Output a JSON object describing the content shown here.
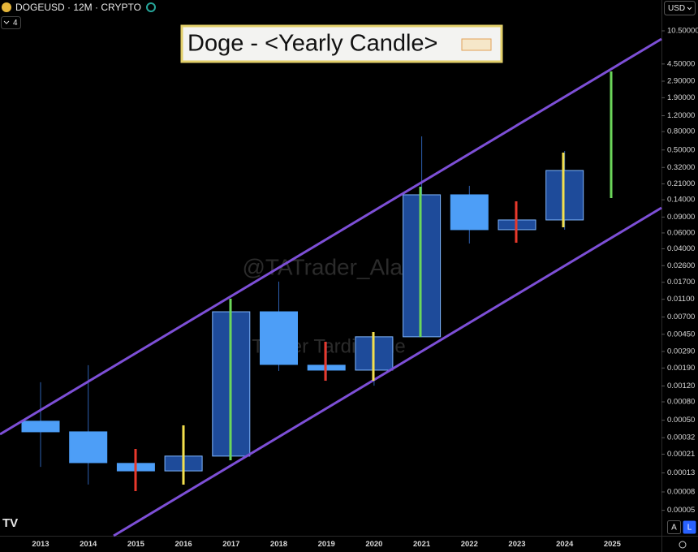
{
  "chart_data": {
    "type": "candlestick",
    "symbol": "DOGEUSD · 12M · CRYPTO",
    "indicator_count": "4",
    "title": "Doge - <Yearly Candle>",
    "watermarks": [
      "@TATrader_Alan",
      "Trader Tardigrade"
    ],
    "currency": "USD",
    "scale_buttons": [
      "A",
      "L"
    ],
    "log_scale": true,
    "grid": false,
    "up_color": "#1e4b9a",
    "up_border": "#7fb6ff",
    "down_color": "#4d9ef7",
    "wick_color": "#2d5fb0",
    "categories": [
      "2013",
      "2014",
      "2015",
      "2016",
      "2017",
      "2018",
      "2019",
      "2020",
      "2021",
      "2022",
      "2023",
      "2024",
      "2025"
    ],
    "open": [
      0.000488,
      0.000372,
      0.000166,
      0.000137,
      0.0002,
      0.008,
      0.00204,
      0.0018,
      0.00422,
      0.159,
      0.0652,
      0.0836,
      null
    ],
    "high": [
      0.00132,
      0.00204,
      0.00024,
      0.00044,
      0.0112,
      0.0173,
      0.00372,
      0.0046,
      0.708,
      0.2,
      0.105,
      0.487,
      null
    ],
    "low": [
      0.000152,
      9.66e-05,
      8.18e-05,
      9.66e-05,
      0.00018,
      0.00176,
      0.00137,
      0.00121,
      0.00422,
      0.0458,
      0.053,
      0.0652,
      null
    ],
    "close": [
      0.000372,
      0.000169,
      0.000137,
      0.0002,
      0.008,
      0.00208,
      0.0018,
      0.00422,
      0.159,
      0.0652,
      0.0836,
      0.296,
      null
    ],
    "ylim": [
      2.61e-05,
      23.1
    ],
    "yticks": [
      {
        "value": 10.5,
        "label": "10.50000"
      },
      {
        "value": 4.5,
        "label": "4.50000"
      },
      {
        "value": 2.9,
        "label": "2.90000"
      },
      {
        "value": 1.9,
        "label": "1.90000"
      },
      {
        "value": 1.2,
        "label": "1.20000"
      },
      {
        "value": 0.8,
        "label": "0.80000"
      },
      {
        "value": 0.5,
        "label": "0.50000"
      },
      {
        "value": 0.32,
        "label": "0.32000"
      },
      {
        "value": 0.21,
        "label": "0.21000"
      },
      {
        "value": 0.14,
        "label": "0.14000"
      },
      {
        "value": 0.09,
        "label": "0.09000"
      },
      {
        "value": 0.06,
        "label": "0.06000"
      },
      {
        "value": 0.04,
        "label": "0.04000"
      },
      {
        "value": 0.026,
        "label": "0.02600"
      },
      {
        "value": 0.017,
        "label": "0.01700"
      },
      {
        "value": 0.011,
        "label": "0.01100"
      },
      {
        "value": 0.007,
        "label": "0.00700"
      },
      {
        "value": 0.0045,
        "label": "0.00450"
      },
      {
        "value": 0.0029,
        "label": "0.00290"
      },
      {
        "value": 0.0019,
        "label": "0.00190"
      },
      {
        "value": 0.0012,
        "label": "0.00120"
      },
      {
        "value": 0.0008,
        "label": "0.00080"
      },
      {
        "value": 0.0005,
        "label": "0.00050"
      },
      {
        "value": 0.00032,
        "label": "0.00032"
      },
      {
        "value": 0.00021,
        "label": "0.00021"
      },
      {
        "value": 0.00013,
        "label": "0.00013"
      },
      {
        "value": 8e-05,
        "label": "0.00008"
      },
      {
        "value": 5e-05,
        "label": "0.00005"
      }
    ]
  }
}
